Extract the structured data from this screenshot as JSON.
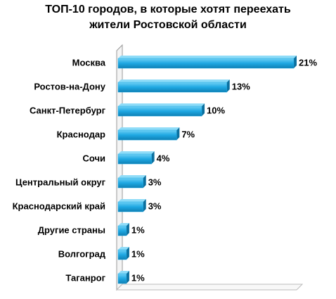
{
  "chart_data": {
    "type": "bar",
    "orientation": "horizontal",
    "title": [
      "ТОП-10 городов, в которые хотят переехать",
      "жители Ростовской области"
    ],
    "categories": [
      "Москва",
      "Ростов-на-Дону",
      "Санкт-Петербург",
      "Краснодар",
      "Сочи",
      "Центральный округ",
      "Краснодарский край",
      "Другие страны",
      "Волгоград",
      "Таганрог"
    ],
    "values": [
      21,
      13,
      10,
      7,
      4,
      3,
      3,
      1,
      1,
      1
    ],
    "value_labels": [
      "21%",
      "13%",
      "10%",
      "7%",
      "4%",
      "3%",
      "3%",
      "1%",
      "1%",
      "1%"
    ],
    "color": "#1ea8e2",
    "xlim": [
      0,
      21
    ]
  }
}
